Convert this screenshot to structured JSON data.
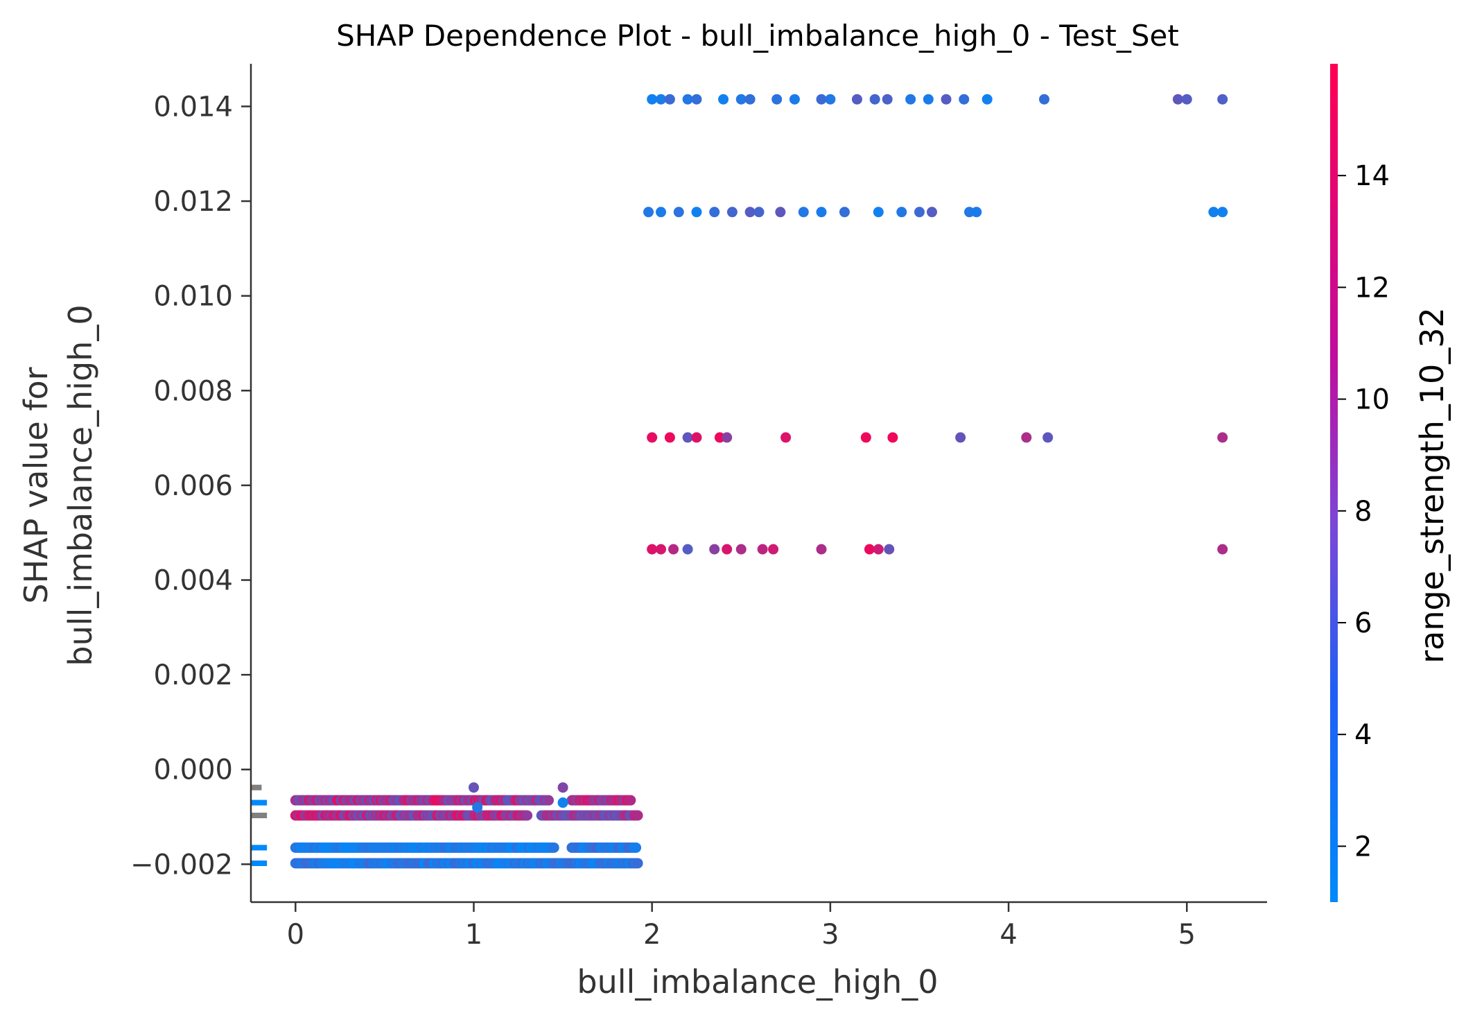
{
  "chart_data": {
    "type": "scatter",
    "title": "SHAP Dependence Plot - bull_imbalance_high_0 - Test_Set",
    "xlabel": "bull_imbalance_high_0",
    "ylabel_line1": "SHAP value for",
    "ylabel_line2": "bull_imbalance_high_0",
    "colorbar_label": "range_strength_10_32",
    "xlim": [
      -0.25,
      5.45
    ],
    "ylim": [
      -0.0028,
      0.0149
    ],
    "x_ticks": [
      0,
      1,
      2,
      3,
      4,
      5
    ],
    "x_tick_labels": [
      "0",
      "1",
      "2",
      "3",
      "4",
      "5"
    ],
    "y_ticks": [
      -0.002,
      0.0,
      0.002,
      0.004,
      0.006,
      0.008,
      0.01,
      0.012,
      0.014
    ],
    "y_tick_labels": [
      "−0.002",
      "0.000",
      "0.002",
      "0.004",
      "0.006",
      "0.008",
      "0.010",
      "0.012",
      "0.014"
    ],
    "colorbar_range": [
      1.0,
      16.0
    ],
    "colorbar_ticks": [
      2,
      4,
      6,
      8,
      10,
      12,
      14
    ],
    "colorbar_tick_labels": [
      "2",
      "4",
      "6",
      "8",
      "10",
      "12",
      "14"
    ],
    "colormap": [
      "#008afb",
      "#ff0052"
    ],
    "grid": false,
    "histogram_color": "#808080",
    "points": [
      {
        "x": 2.0,
        "y": 0.01415,
        "c": 2.0
      },
      {
        "x": 2.05,
        "y": 0.01415,
        "c": 2.5
      },
      {
        "x": 2.1,
        "y": 0.01415,
        "c": 4.5
      },
      {
        "x": 2.2,
        "y": 0.01415,
        "c": 3.0
      },
      {
        "x": 2.25,
        "y": 0.01415,
        "c": 4.0
      },
      {
        "x": 2.4,
        "y": 0.01415,
        "c": 2.0
      },
      {
        "x": 2.5,
        "y": 0.01415,
        "c": 3.0
      },
      {
        "x": 2.55,
        "y": 0.01415,
        "c": 4.0
      },
      {
        "x": 2.7,
        "y": 0.01415,
        "c": 3.5
      },
      {
        "x": 2.8,
        "y": 0.01415,
        "c": 2.5
      },
      {
        "x": 2.95,
        "y": 0.01415,
        "c": 4.5
      },
      {
        "x": 3.0,
        "y": 0.01415,
        "c": 3.0
      },
      {
        "x": 3.15,
        "y": 0.01415,
        "c": 6.0
      },
      {
        "x": 3.25,
        "y": 0.01415,
        "c": 5.0
      },
      {
        "x": 3.32,
        "y": 0.01415,
        "c": 5.5
      },
      {
        "x": 3.45,
        "y": 0.01415,
        "c": 3.0
      },
      {
        "x": 3.55,
        "y": 0.01415,
        "c": 2.5
      },
      {
        "x": 3.65,
        "y": 0.01415,
        "c": 6.0
      },
      {
        "x": 3.75,
        "y": 0.01415,
        "c": 4.0
      },
      {
        "x": 3.88,
        "y": 0.01415,
        "c": 2.0
      },
      {
        "x": 4.2,
        "y": 0.01415,
        "c": 4.0
      },
      {
        "x": 4.95,
        "y": 0.01415,
        "c": 6.5
      },
      {
        "x": 5.0,
        "y": 0.01415,
        "c": 6.0
      },
      {
        "x": 5.2,
        "y": 0.01415,
        "c": 5.5
      },
      {
        "x": 1.98,
        "y": 0.01177,
        "c": 3.0
      },
      {
        "x": 2.05,
        "y": 0.01177,
        "c": 2.5
      },
      {
        "x": 2.15,
        "y": 0.01177,
        "c": 3.5
      },
      {
        "x": 2.25,
        "y": 0.01177,
        "c": 2.0
      },
      {
        "x": 2.35,
        "y": 0.01177,
        "c": 4.0
      },
      {
        "x": 2.45,
        "y": 0.01177,
        "c": 5.0
      },
      {
        "x": 2.55,
        "y": 0.01177,
        "c": 6.0
      },
      {
        "x": 2.6,
        "y": 0.01177,
        "c": 5.0
      },
      {
        "x": 2.72,
        "y": 0.01177,
        "c": 6.5
      },
      {
        "x": 2.85,
        "y": 0.01177,
        "c": 3.0
      },
      {
        "x": 2.95,
        "y": 0.01177,
        "c": 2.5
      },
      {
        "x": 3.08,
        "y": 0.01177,
        "c": 4.0
      },
      {
        "x": 3.27,
        "y": 0.01177,
        "c": 2.0
      },
      {
        "x": 3.4,
        "y": 0.01177,
        "c": 3.0
      },
      {
        "x": 3.5,
        "y": 0.01177,
        "c": 4.5
      },
      {
        "x": 3.57,
        "y": 0.01177,
        "c": 6.0
      },
      {
        "x": 3.78,
        "y": 0.01177,
        "c": 3.0
      },
      {
        "x": 3.82,
        "y": 0.01177,
        "c": 2.5
      },
      {
        "x": 5.15,
        "y": 0.01177,
        "c": 2.0
      },
      {
        "x": 5.2,
        "y": 0.01177,
        "c": 2.0
      },
      {
        "x": 2.0,
        "y": 0.00701,
        "c": 14.5
      },
      {
        "x": 2.1,
        "y": 0.00701,
        "c": 15.0
      },
      {
        "x": 2.2,
        "y": 0.00701,
        "c": 6.5
      },
      {
        "x": 2.25,
        "y": 0.00701,
        "c": 14.0
      },
      {
        "x": 2.38,
        "y": 0.00701,
        "c": 15.0
      },
      {
        "x": 2.42,
        "y": 0.00701,
        "c": 9.0
      },
      {
        "x": 2.75,
        "y": 0.00701,
        "c": 14.0
      },
      {
        "x": 3.2,
        "y": 0.00701,
        "c": 15.0
      },
      {
        "x": 3.35,
        "y": 0.00701,
        "c": 15.0
      },
      {
        "x": 3.73,
        "y": 0.00701,
        "c": 7.0
      },
      {
        "x": 4.1,
        "y": 0.00701,
        "c": 11.0
      },
      {
        "x": 4.22,
        "y": 0.00701,
        "c": 6.5
      },
      {
        "x": 5.2,
        "y": 0.00701,
        "c": 11.0
      },
      {
        "x": 2.0,
        "y": 0.00465,
        "c": 14.0
      },
      {
        "x": 2.05,
        "y": 0.00465,
        "c": 13.5
      },
      {
        "x": 2.12,
        "y": 0.00465,
        "c": 11.5
      },
      {
        "x": 2.2,
        "y": 0.00465,
        "c": 6.0
      },
      {
        "x": 2.35,
        "y": 0.00465,
        "c": 9.0
      },
      {
        "x": 2.42,
        "y": 0.00465,
        "c": 13.5
      },
      {
        "x": 2.5,
        "y": 0.00465,
        "c": 11.0
      },
      {
        "x": 2.62,
        "y": 0.00465,
        "c": 12.0
      },
      {
        "x": 2.68,
        "y": 0.00465,
        "c": 13.0
      },
      {
        "x": 2.95,
        "y": 0.00465,
        "c": 11.0
      },
      {
        "x": 3.22,
        "y": 0.00465,
        "c": 15.0
      },
      {
        "x": 3.27,
        "y": 0.00465,
        "c": 13.0
      },
      {
        "x": 3.33,
        "y": 0.00465,
        "c": 7.0
      },
      {
        "x": 5.2,
        "y": 0.00465,
        "c": 11.0
      },
      {
        "x": 1.0,
        "y": -0.00038,
        "c": 7.0
      },
      {
        "x": 1.5,
        "y": -0.00038,
        "c": 8.5
      },
      {
        "x": 1.5,
        "y": -0.0007,
        "c": 2.0
      },
      {
        "x": 1.02,
        "y": -0.0008,
        "c": 3.0
      }
    ],
    "bands": [
      {
        "y": -0.00065,
        "x_start": 0.0,
        "x_end": 1.42,
        "c_range": [
          6,
          15
        ]
      },
      {
        "y": -0.00065,
        "x_start": 1.55,
        "x_end": 1.88,
        "c_range": [
          8,
          15
        ]
      },
      {
        "y": -0.00097,
        "x_start": 0.0,
        "x_end": 1.3,
        "c_range": [
          6,
          15
        ]
      },
      {
        "y": -0.00097,
        "x_start": 1.38,
        "x_end": 1.92,
        "c_range": [
          6,
          12
        ]
      },
      {
        "y": -0.00165,
        "x_start": 0.0,
        "x_end": 1.45,
        "c_range": [
          1,
          4
        ]
      },
      {
        "y": -0.00165,
        "x_start": 1.55,
        "x_end": 1.91,
        "c_range": [
          1,
          5
        ]
      },
      {
        "y": -0.00198,
        "x_start": 0.0,
        "x_end": 1.92,
        "c_range": [
          1,
          5
        ]
      }
    ]
  }
}
